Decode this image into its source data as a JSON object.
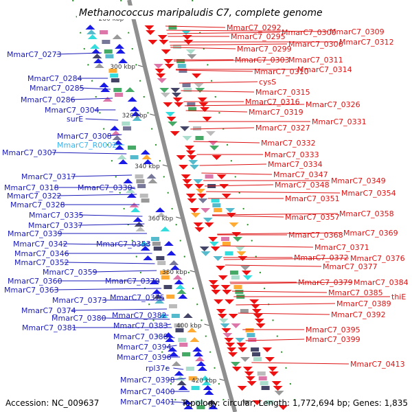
{
  "title": "Methanococcus maripaludis C7, complete genome",
  "accession": "Accession: NC_009637",
  "summary": "Topology: circular; Length: 1,772,694 bp; Genes: 1,835",
  "colors": {
    "left_label": "#1a1ab8",
    "left_highlight": "#3cb4ee",
    "right_label": "#dd1111",
    "backbone": "#8f8f8f",
    "tick": "#1f8f1f",
    "cds": "#ee1111",
    "cds_left": "#1a1ae6",
    "rna": "#33ccee"
  },
  "kbp_ticks": [
    "280 kbp",
    "300 kbp",
    "320 kbp",
    "340 kbp",
    "360 kbp",
    "380 kbp",
    "400 kbp",
    "420 kbp"
  ],
  "left_labels": [
    "MmarC7_0273",
    "MmarC7_0284",
    "MmarC7_0285",
    "MmarC7_0286",
    "MmarC7_0304",
    "surE",
    "MmarC7_0308",
    "MmarC7_R0002",
    "MmarC7_0307",
    "MmarC7_0317",
    "MmarC7_0318",
    "MmarC7_0330",
    "MmarC7_0322",
    "MmarC7_0328",
    "MmarC7_0335",
    "MmarC7_0337",
    "MmarC7_0339",
    "MmarC7_0342",
    "MmarC7_0353",
    "MmarC7_0346",
    "MmarC7_0352",
    "MmarC7_0359",
    "MmarC7_0360",
    "MmarC7_0370",
    "MmarC7_0363",
    "MmarC7_0373",
    "MmarC7_0375",
    "MmarC7_0374",
    "MmarC7_0382",
    "MmarC7_0380",
    "MmarC7_0383",
    "MmarC7_0381",
    "MmarC7_0388",
    "MmarC7_0394",
    "MmarC7_0396",
    "rpl37e",
    "MmarC7_0398",
    "MmarC7_0400",
    "MmarC7_0401"
  ],
  "right_labels": [
    "MmarC7_0292",
    "MmarC7_0295",
    "MmarC7_0300",
    "MmarC7_0309",
    "MmarC7_0312",
    "MmarC7_0306",
    "MmarC7_0299",
    "MmarC7_0303",
    "MmarC7_0311",
    "MmarC7_0310",
    "MmarC7_0314",
    "cysS",
    "MmarC7_0315",
    "MmarC7_0316",
    "MmarC7_0326",
    "MmarC7_0319",
    "MmarC7_0331",
    "MmarC7_0327",
    "MmarC7_0332",
    "MmarC7_0333",
    "MmarC7_0334",
    "MmarC7_0347",
    "MmarC7_0349",
    "MmarC7_0348",
    "MmarC7_0354",
    "MmarC7_0351",
    "MmarC7_0358",
    "MmarC7_0357",
    "MmarC7_0368",
    "MmarC7_0369",
    "MmarC7_0371",
    "MmarC7_0372",
    "MmarC7_0376",
    "MmarC7_0377",
    "MmarC7_0379",
    "MmarC7_0384",
    "MmarC7_0385",
    "thiE",
    "MmarC7_0389",
    "MmarC7_0392",
    "MmarC7_0395",
    "MmarC7_0399",
    "MmarC7_0413"
  ]
}
